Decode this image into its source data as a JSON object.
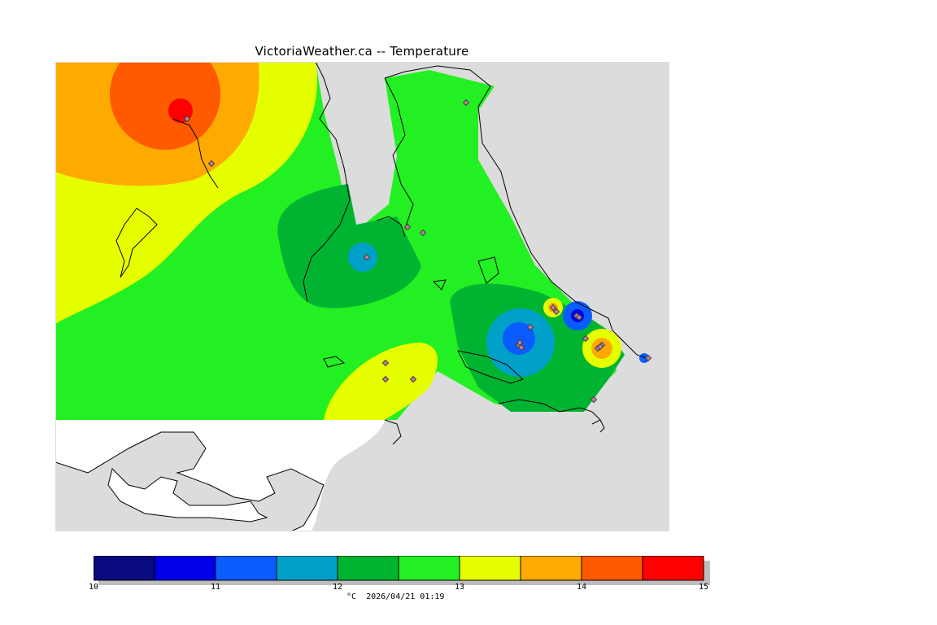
{
  "title": "VictoriaWeather.ca -- Temperature",
  "map": {
    "variable": "Temperature",
    "land_fill": "#dcdcdc",
    "outside_fill": "#ffffff",
    "coastline_color": "#000000",
    "station_marker": "diamond",
    "station_color": "#c080a0",
    "station_count": 23
  },
  "colorbar": {
    "caption": "°C  2026/04/21 01:19",
    "units": "°C",
    "timestamp": "2026/04/21 01:19",
    "min": 10,
    "max": 15,
    "step": 0.5,
    "tick_labels": [
      "10",
      "11",
      "12",
      "13",
      "14",
      "15"
    ],
    "colors": [
      "#0a0a80",
      "#0000e8",
      "#0a5cff",
      "#00a0c8",
      "#00b432",
      "#22f022",
      "#e6ff00",
      "#ffaa00",
      "#ff5a00",
      "#ff0000"
    ]
  }
}
